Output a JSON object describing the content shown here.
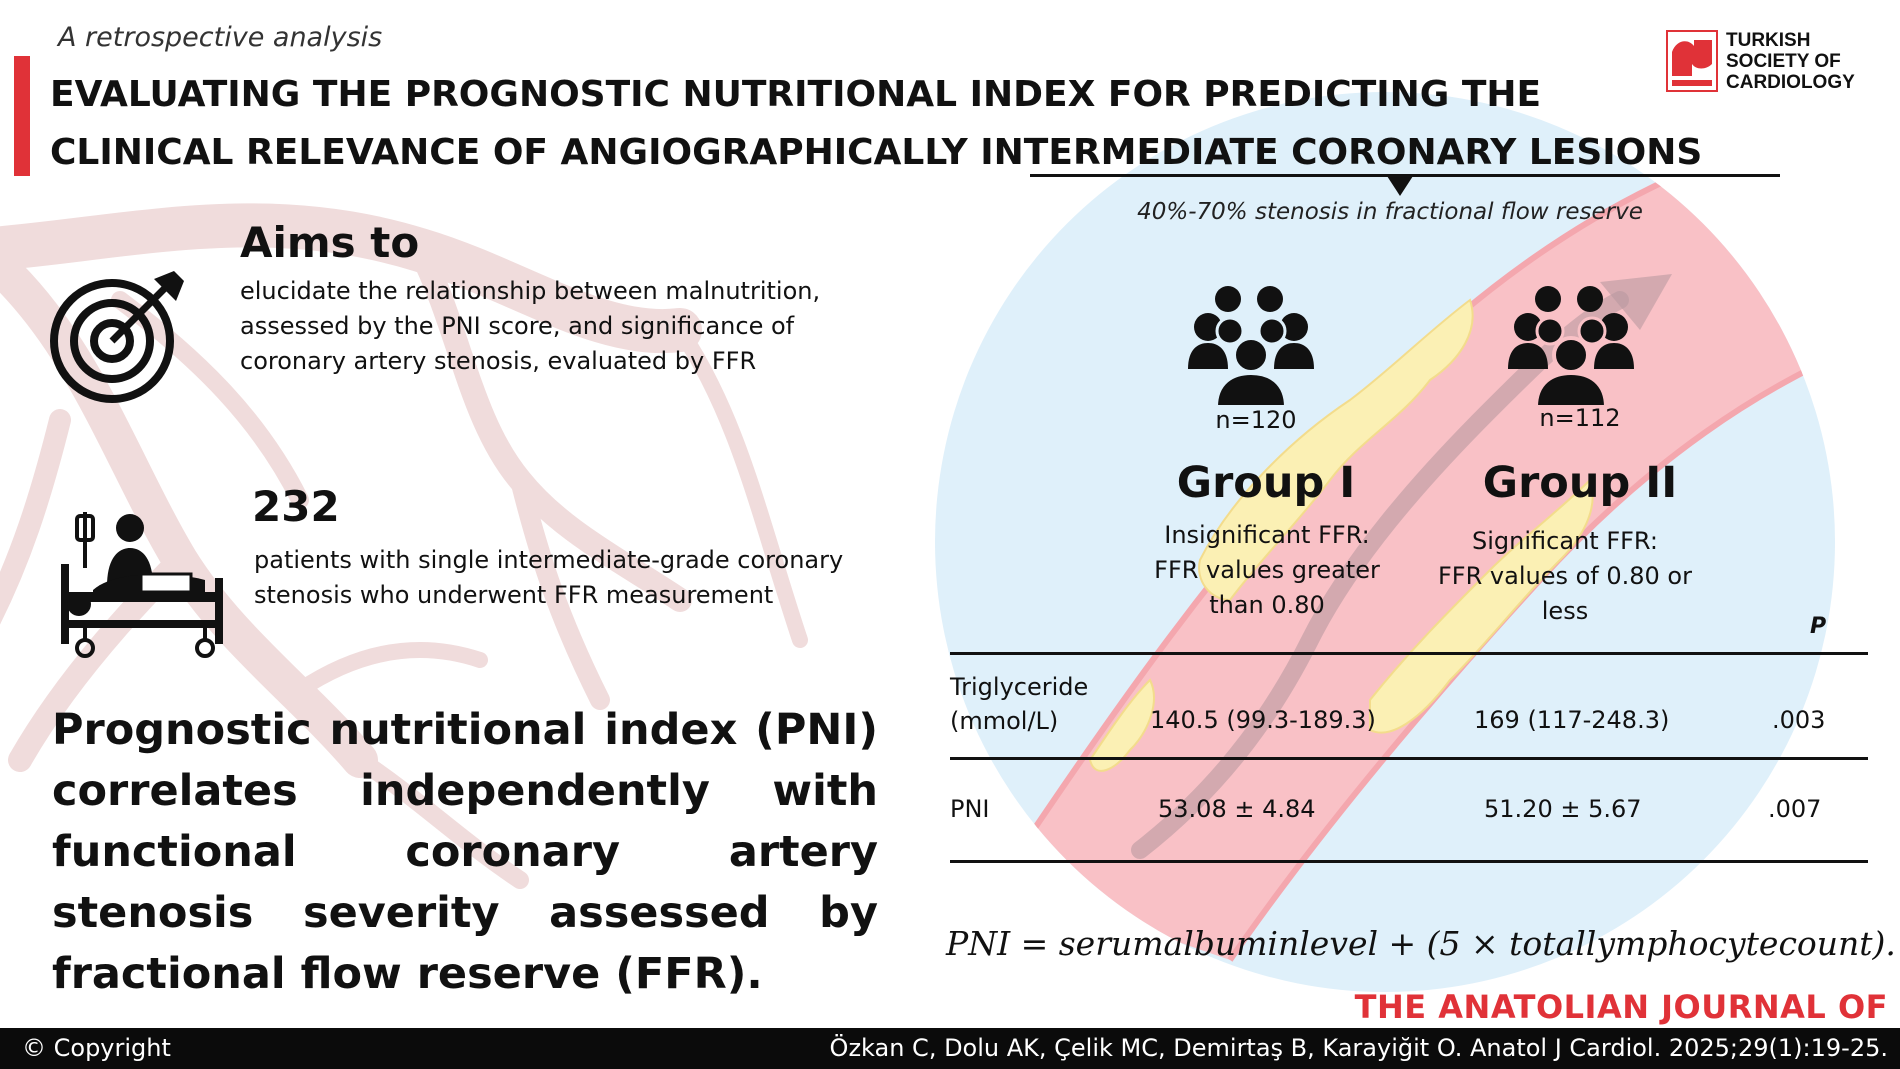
{
  "header": {
    "kicker": "A retrospective analysis",
    "title_line1": "EVALUATING THE PROGNOSTIC NUTRITIONAL INDEX FOR PREDICTING THE",
    "title_line2": "CLINICAL RELEVANCE OF ANGIOGRAPHICALLY INTERMEDIATE CORONARY LESIONS"
  },
  "logo": {
    "line1": "TURKISH",
    "line2": "SOCIETY OF",
    "line3": "CARDIOLOGY",
    "color": "#e03238"
  },
  "range_note": "40%-70% stenosis in fractional flow reserve",
  "aims": {
    "heading": "Aims to",
    "body": "elucidate the relationship between malnutrition, assessed by the PNI score, and significance of coronary artery stenosis, evaluated by FFR",
    "icon": "target-arrow-icon"
  },
  "patients": {
    "count": "232",
    "body": "patients with single intermediate-grade coronary stenosis who underwent FFR measurement",
    "icon": "hospital-bed-icon"
  },
  "summary": "Prognostic nutritional index (PNI) correlates independently with functional coronary artery stenosis severity assessed by fractional flow reserve (FFR).",
  "groups": [
    {
      "n": "n=120",
      "title": "Group I",
      "desc_line1": "Insignificant FFR:",
      "desc_line2": "FFR values greater",
      "desc_line3": "than 0.80",
      "icon": "people-group-icon"
    },
    {
      "n": "n=112",
      "title": "Group II",
      "desc_line1": "Significant FFR:",
      "desc_line2": "FFR values of 0.80 or",
      "desc_line3": "less",
      "icon": "people-group-icon"
    }
  ],
  "table": {
    "p_header": "P",
    "rows": [
      {
        "label_line1": "Triglyceride",
        "label_line2": "(mmol/L)",
        "group1": "140.5 (99.3-189.3)",
        "group2": "169 (117-248.3)",
        "p": ".003"
      },
      {
        "label_line1": "PNI",
        "label_line2": "",
        "group1": "53.08 ± 4.84",
        "group2": "51.20 ± 5.67",
        "p": ".007"
      }
    ]
  },
  "formula": "PNI = serumalbuminlevel + (5 × totallymphocytecount).",
  "journal": "THE ANATOLIAN JOURNAL OF CARDIOLOGY",
  "footer": {
    "copyright": "© Copyright",
    "citation": "Özkan C, Dolu AK, Çelik MC, Demirtaş B, Karayiğit O. Anatol J Cardiol. 2025;29(1):19-25."
  },
  "colors": {
    "accent_red": "#e03238",
    "vessel_pink": "#f6b7bd",
    "plaque_yellow": "#fbf0b4",
    "circle_blue": "#dff0fa",
    "bg_vessel": "#f0d9d9"
  }
}
